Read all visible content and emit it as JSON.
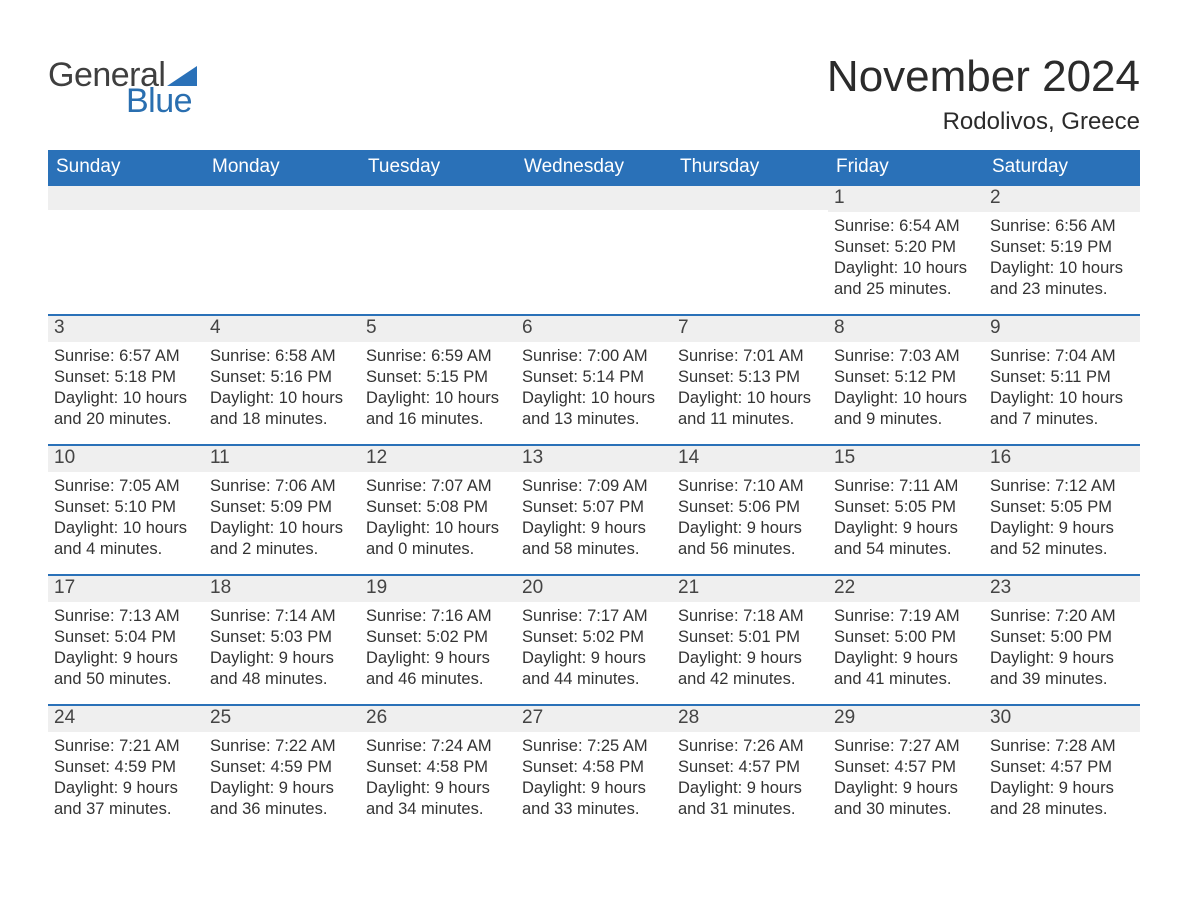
{
  "brand": {
    "word1": "General",
    "word2": "Blue",
    "triangle_color": "#2a71b8",
    "word1_color": "#3f3f3f",
    "word2_color": "#2a6fb0"
  },
  "title": "November 2024",
  "location": "Rodolivos, Greece",
  "colors": {
    "header_bg": "#2a71b8",
    "header_text": "#ffffff",
    "daynum_bg": "#efefef",
    "text": "#333333",
    "rule": "#2a71b8",
    "page_bg": "#ffffff"
  },
  "columns": [
    "Sunday",
    "Monday",
    "Tuesday",
    "Wednesday",
    "Thursday",
    "Friday",
    "Saturday"
  ],
  "weeks": [
    [
      {
        "day": "",
        "lines": []
      },
      {
        "day": "",
        "lines": []
      },
      {
        "day": "",
        "lines": []
      },
      {
        "day": "",
        "lines": []
      },
      {
        "day": "",
        "lines": []
      },
      {
        "day": "1",
        "lines": [
          "Sunrise: 6:54 AM",
          "Sunset: 5:20 PM",
          "Daylight: 10 hours",
          "and 25 minutes."
        ]
      },
      {
        "day": "2",
        "lines": [
          "Sunrise: 6:56 AM",
          "Sunset: 5:19 PM",
          "Daylight: 10 hours",
          "and 23 minutes."
        ]
      }
    ],
    [
      {
        "day": "3",
        "lines": [
          "Sunrise: 6:57 AM",
          "Sunset: 5:18 PM",
          "Daylight: 10 hours",
          "and 20 minutes."
        ]
      },
      {
        "day": "4",
        "lines": [
          "Sunrise: 6:58 AM",
          "Sunset: 5:16 PM",
          "Daylight: 10 hours",
          "and 18 minutes."
        ]
      },
      {
        "day": "5",
        "lines": [
          "Sunrise: 6:59 AM",
          "Sunset: 5:15 PM",
          "Daylight: 10 hours",
          "and 16 minutes."
        ]
      },
      {
        "day": "6",
        "lines": [
          "Sunrise: 7:00 AM",
          "Sunset: 5:14 PM",
          "Daylight: 10 hours",
          "and 13 minutes."
        ]
      },
      {
        "day": "7",
        "lines": [
          "Sunrise: 7:01 AM",
          "Sunset: 5:13 PM",
          "Daylight: 10 hours",
          "and 11 minutes."
        ]
      },
      {
        "day": "8",
        "lines": [
          "Sunrise: 7:03 AM",
          "Sunset: 5:12 PM",
          "Daylight: 10 hours",
          "and 9 minutes."
        ]
      },
      {
        "day": "9",
        "lines": [
          "Sunrise: 7:04 AM",
          "Sunset: 5:11 PM",
          "Daylight: 10 hours",
          "and 7 minutes."
        ]
      }
    ],
    [
      {
        "day": "10",
        "lines": [
          "Sunrise: 7:05 AM",
          "Sunset: 5:10 PM",
          "Daylight: 10 hours",
          "and 4 minutes."
        ]
      },
      {
        "day": "11",
        "lines": [
          "Sunrise: 7:06 AM",
          "Sunset: 5:09 PM",
          "Daylight: 10 hours",
          "and 2 minutes."
        ]
      },
      {
        "day": "12",
        "lines": [
          "Sunrise: 7:07 AM",
          "Sunset: 5:08 PM",
          "Daylight: 10 hours",
          "and 0 minutes."
        ]
      },
      {
        "day": "13",
        "lines": [
          "Sunrise: 7:09 AM",
          "Sunset: 5:07 PM",
          "Daylight: 9 hours",
          "and 58 minutes."
        ]
      },
      {
        "day": "14",
        "lines": [
          "Sunrise: 7:10 AM",
          "Sunset: 5:06 PM",
          "Daylight: 9 hours",
          "and 56 minutes."
        ]
      },
      {
        "day": "15",
        "lines": [
          "Sunrise: 7:11 AM",
          "Sunset: 5:05 PM",
          "Daylight: 9 hours",
          "and 54 minutes."
        ]
      },
      {
        "day": "16",
        "lines": [
          "Sunrise: 7:12 AM",
          "Sunset: 5:05 PM",
          "Daylight: 9 hours",
          "and 52 minutes."
        ]
      }
    ],
    [
      {
        "day": "17",
        "lines": [
          "Sunrise: 7:13 AM",
          "Sunset: 5:04 PM",
          "Daylight: 9 hours",
          "and 50 minutes."
        ]
      },
      {
        "day": "18",
        "lines": [
          "Sunrise: 7:14 AM",
          "Sunset: 5:03 PM",
          "Daylight: 9 hours",
          "and 48 minutes."
        ]
      },
      {
        "day": "19",
        "lines": [
          "Sunrise: 7:16 AM",
          "Sunset: 5:02 PM",
          "Daylight: 9 hours",
          "and 46 minutes."
        ]
      },
      {
        "day": "20",
        "lines": [
          "Sunrise: 7:17 AM",
          "Sunset: 5:02 PM",
          "Daylight: 9 hours",
          "and 44 minutes."
        ]
      },
      {
        "day": "21",
        "lines": [
          "Sunrise: 7:18 AM",
          "Sunset: 5:01 PM",
          "Daylight: 9 hours",
          "and 42 minutes."
        ]
      },
      {
        "day": "22",
        "lines": [
          "Sunrise: 7:19 AM",
          "Sunset: 5:00 PM",
          "Daylight: 9 hours",
          "and 41 minutes."
        ]
      },
      {
        "day": "23",
        "lines": [
          "Sunrise: 7:20 AM",
          "Sunset: 5:00 PM",
          "Daylight: 9 hours",
          "and 39 minutes."
        ]
      }
    ],
    [
      {
        "day": "24",
        "lines": [
          "Sunrise: 7:21 AM",
          "Sunset: 4:59 PM",
          "Daylight: 9 hours",
          "and 37 minutes."
        ]
      },
      {
        "day": "25",
        "lines": [
          "Sunrise: 7:22 AM",
          "Sunset: 4:59 PM",
          "Daylight: 9 hours",
          "and 36 minutes."
        ]
      },
      {
        "day": "26",
        "lines": [
          "Sunrise: 7:24 AM",
          "Sunset: 4:58 PM",
          "Daylight: 9 hours",
          "and 34 minutes."
        ]
      },
      {
        "day": "27",
        "lines": [
          "Sunrise: 7:25 AM",
          "Sunset: 4:58 PM",
          "Daylight: 9 hours",
          "and 33 minutes."
        ]
      },
      {
        "day": "28",
        "lines": [
          "Sunrise: 7:26 AM",
          "Sunset: 4:57 PM",
          "Daylight: 9 hours",
          "and 31 minutes."
        ]
      },
      {
        "day": "29",
        "lines": [
          "Sunrise: 7:27 AM",
          "Sunset: 4:57 PM",
          "Daylight: 9 hours",
          "and 30 minutes."
        ]
      },
      {
        "day": "30",
        "lines": [
          "Sunrise: 7:28 AM",
          "Sunset: 4:57 PM",
          "Daylight: 9 hours",
          "and 28 minutes."
        ]
      }
    ]
  ]
}
